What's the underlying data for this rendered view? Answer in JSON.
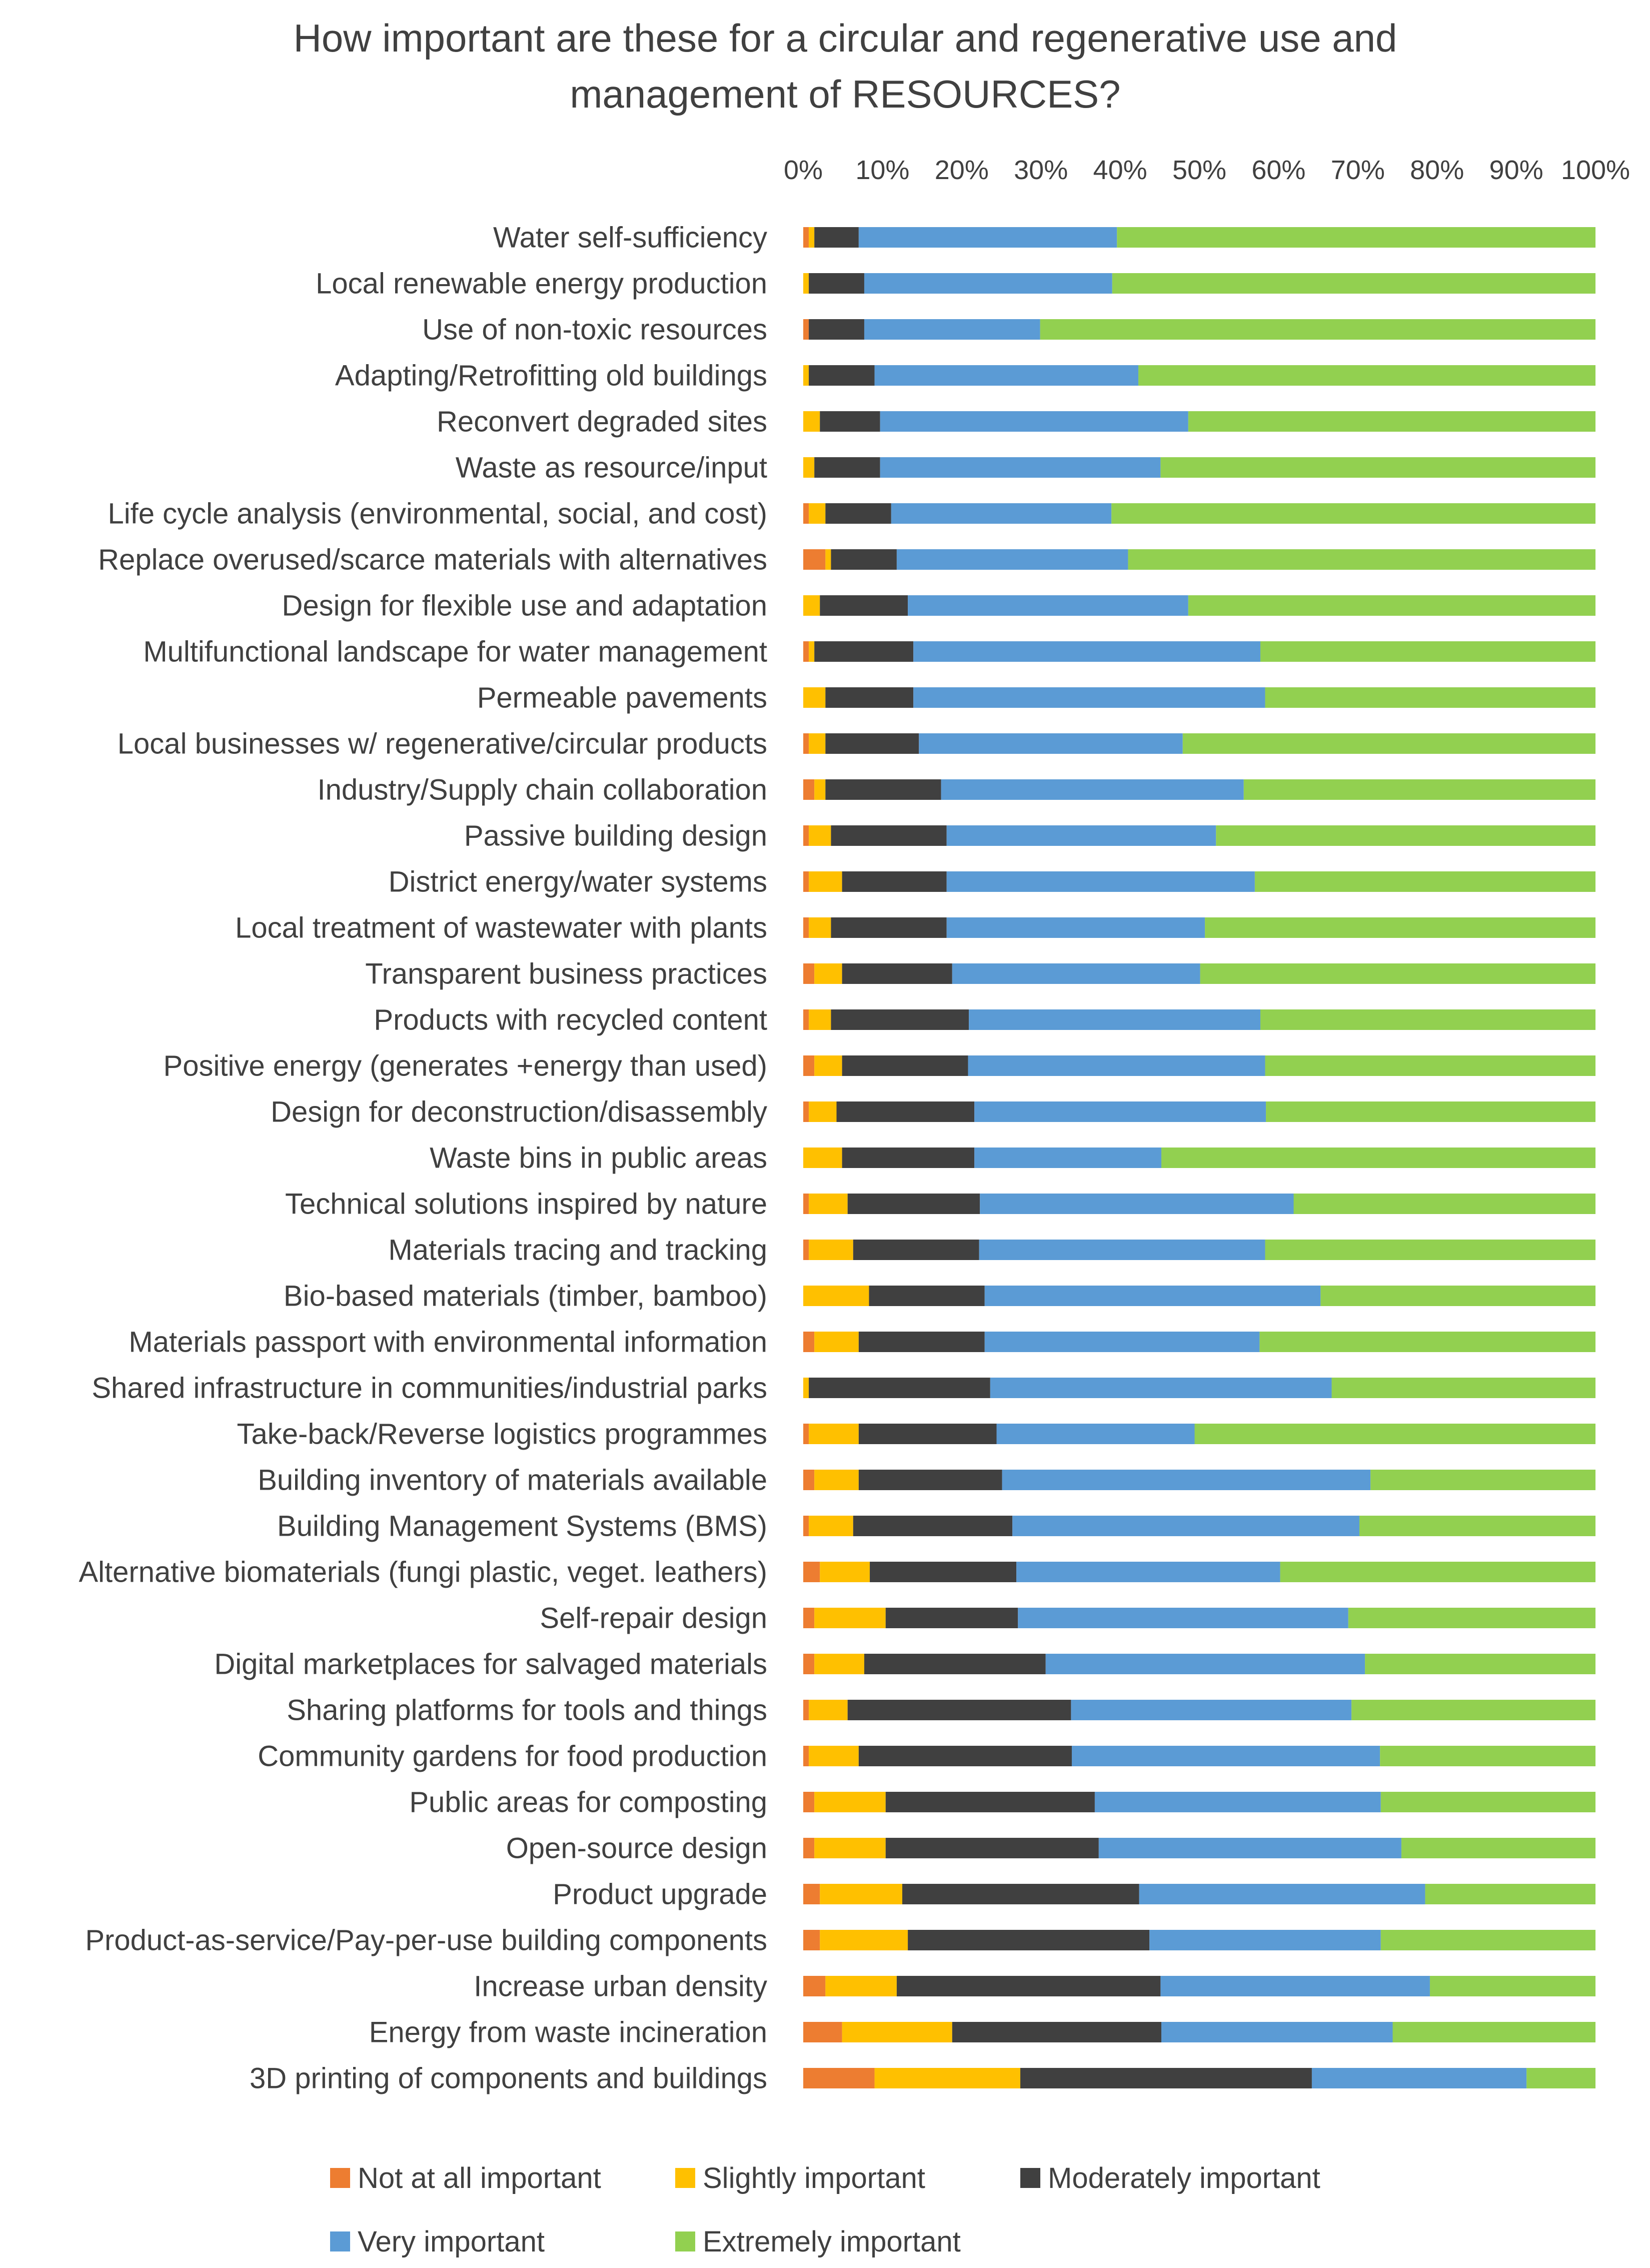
{
  "chart_data": {
    "type": "bar",
    "orientation": "horizontal",
    "stacked": "percent",
    "title_lines": [
      "How important are these for a circular and regenerative use and",
      "management of RESOURCES?"
    ],
    "xlim": [
      0,
      100
    ],
    "x_ticks": [
      "0%",
      "10%",
      "20%",
      "30%",
      "40%",
      "50%",
      "60%",
      "70%",
      "80%",
      "90%",
      "100%"
    ],
    "grid": false,
    "legend_position": "bottom",
    "categories": [
      "Water self-sufficiency",
      "Local renewable energy production",
      "Use of non-toxic resources",
      "Adapting/Retrofitting old buildings",
      "Reconvert degraded sites",
      "Waste as resource/input",
      "Life cycle analysis (environmental, social, and cost)",
      "Replace overused/scarce materials with alternatives",
      "Design for flexible use and adaptation",
      "Multifunctional landscape for water management",
      "Permeable pavements",
      "Local businesses w/ regenerative/circular products",
      "Industry/Supply chain collaboration",
      "Passive building design",
      "District energy/water systems",
      "Local treatment of wastewater with plants",
      "Transparent business practices",
      "Products with recycled content",
      "Positive energy (generates +energy than used)",
      "Design for deconstruction/disassembly",
      "Waste bins in public areas",
      "Technical solutions inspired by nature",
      "Materials tracing and tracking",
      "Bio-based materials (timber, bamboo)",
      "Materials passport with environmental information",
      "Shared infrastructure in communities/industrial parks",
      "Take-back/Reverse logistics programmes",
      "Building inventory of materials available",
      "Building Management Systems (BMS)",
      "Alternative biomaterials (fungi plastic, veget. leathers)",
      "Self-repair design",
      "Digital marketplaces for salvaged materials",
      "Sharing platforms for tools and things",
      "Community gardens for food production",
      "Public areas for composting",
      "Open-source design",
      "Product upgrade",
      "Product-as-service/Pay-per-use building components",
      "Increase urban density",
      "Energy from waste incineration",
      "3D printing of components and buildings"
    ],
    "series": [
      {
        "name": "Not at all important",
        "color": "#ED7D31",
        "values": [
          0.7,
          0,
          0.7,
          0,
          0,
          0,
          0.7,
          2.8,
          0,
          0.7,
          0,
          0.7,
          1.4,
          0.7,
          0.7,
          0.7,
          1.4,
          0.7,
          1.4,
          0.7,
          0,
          0.7,
          0.7,
          0,
          1.4,
          0,
          0.7,
          1.4,
          0.7,
          2.1,
          1.4,
          1.4,
          0.7,
          0.7,
          1.4,
          1.4,
          2.1,
          2.1,
          2.8,
          4.9,
          9.0
        ]
      },
      {
        "name": "Slightly important",
        "color": "#FFC000",
        "values": [
          0.7,
          0.7,
          0,
          0.7,
          2.1,
          1.4,
          2.1,
          0.7,
          2.1,
          0.7,
          2.8,
          2.1,
          1.4,
          2.8,
          4.2,
          2.8,
          3.5,
          2.8,
          3.5,
          3.5,
          4.9,
          4.9,
          5.6,
          8.3,
          5.6,
          0.7,
          6.3,
          5.6,
          5.6,
          6.3,
          9.0,
          6.3,
          4.9,
          6.3,
          9.0,
          9.0,
          10.4,
          11.1,
          9.0,
          13.9,
          18.4
        ]
      },
      {
        "name": "Moderately important",
        "color": "#404040",
        "values": [
          5.6,
          7.0,
          7.0,
          8.3,
          7.6,
          8.3,
          8.3,
          8.3,
          11.1,
          12.5,
          11.1,
          11.8,
          14.6,
          14.6,
          13.2,
          14.6,
          13.9,
          17.4,
          15.9,
          17.4,
          16.7,
          16.7,
          15.9,
          14.6,
          15.9,
          22.9,
          17.4,
          18.1,
          20.1,
          18.5,
          16.7,
          22.9,
          28.2,
          26.9,
          26.4,
          26.9,
          29.9,
          30.5,
          33.3,
          26.4,
          36.8
        ]
      },
      {
        "name": "Very important",
        "color": "#5B9BD5",
        "values": [
          32.6,
          31.3,
          22.2,
          33.3,
          38.9,
          35.4,
          27.8,
          29.2,
          35.4,
          43.8,
          44.4,
          33.3,
          38.2,
          34.0,
          38.9,
          32.6,
          31.3,
          36.8,
          37.5,
          36.8,
          23.6,
          39.6,
          36.1,
          42.4,
          34.7,
          43.1,
          25.0,
          46.5,
          43.8,
          33.3,
          41.7,
          40.3,
          35.4,
          38.9,
          36.1,
          38.2,
          36.1,
          29.2,
          34.0,
          29.2,
          27.1
        ]
      },
      {
        "name": "Extremely important",
        "color": "#92D050",
        "values": [
          60.4,
          61.0,
          70.1,
          57.7,
          51.4,
          54.9,
          61.1,
          59.0,
          51.4,
          42.3,
          41.7,
          52.1,
          44.4,
          47.9,
          43.0,
          49.3,
          49.9,
          42.3,
          41.7,
          41.6,
          54.8,
          38.1,
          41.7,
          34.7,
          42.4,
          33.3,
          50.6,
          28.4,
          29.8,
          39.8,
          31.2,
          29.1,
          30.8,
          27.2,
          27.1,
          24.5,
          21.5,
          27.1,
          20.9,
          25.6,
          8.7
        ]
      }
    ]
  }
}
